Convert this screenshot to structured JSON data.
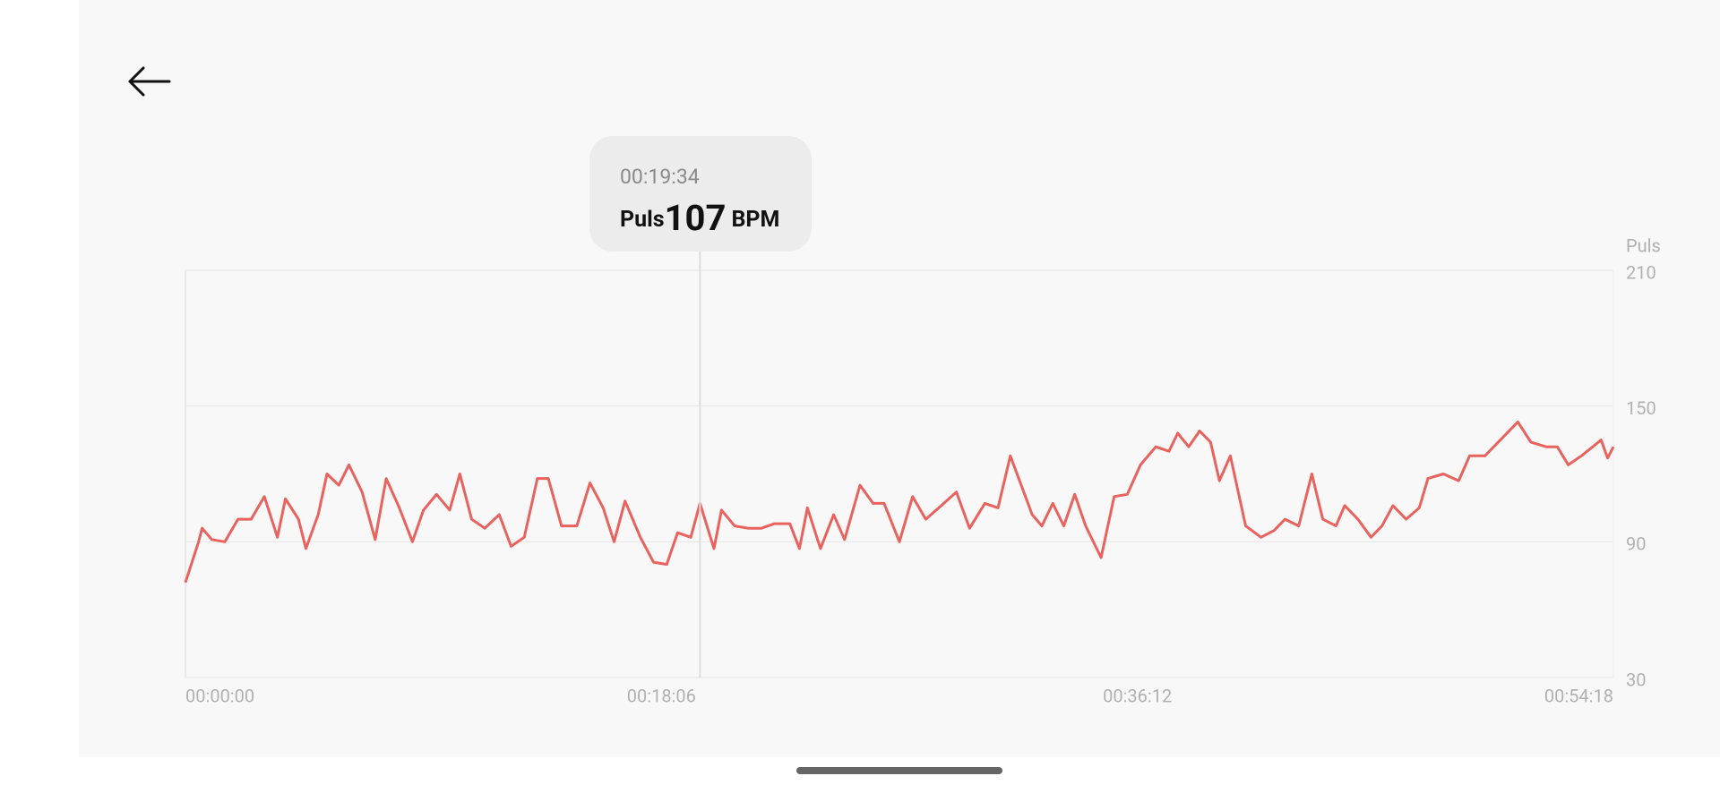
{
  "chart_data": {
    "type": "line",
    "y_axis_label": "Puls",
    "x": [
      0,
      30,
      38,
      60,
      90,
      120,
      150,
      180,
      210,
      228,
      258,
      275,
      303,
      323,
      350,
      373,
      403,
      433,
      458,
      488,
      518,
      543,
      573,
      603,
      626,
      653,
      683,
      716,
      743,
      773,
      803,
      828,
      858,
      893,
      923,
      953,
      978,
      1003,
      1038,
      1068,
      1098,
      1123,
      1153,
      1174,
      1206,
      1223,
      1253,
      1284,
      1314,
      1344,
      1379,
      1401,
      1419,
      1449,
      1479,
      1504,
      1539,
      1569,
      1594,
      1629,
      1659,
      1689,
      1719,
      1759,
      1789,
      1824,
      1854,
      1882,
      1907,
      1932,
      1954,
      1979,
      2004,
      2029,
      2054,
      2089,
      2119,
      2149,
      2179,
      2214,
      2244,
      2264,
      2289,
      2314,
      2339,
      2359,
      2384,
      2419,
      2454,
      2484,
      2509,
      2540,
      2570,
      2595,
      2625,
      2645,
      2675,
      2705,
      2730,
      2755,
      2785,
      2815,
      2835,
      2870,
      2905,
      2930,
      2965,
      3000,
      3040,
      3070,
      3105,
      3130,
      3155,
      3185,
      3230,
      3245,
      3258
    ],
    "series": [
      {
        "name": "Puls",
        "color": "#e8625e",
        "values": [
          72,
          90,
          96,
          91,
          90,
          100,
          100,
          110,
          92,
          109,
          100,
          87,
          102,
          120,
          115,
          124,
          112,
          91,
          118,
          105,
          90,
          104,
          111,
          104,
          120,
          100,
          96,
          102,
          88,
          92,
          118,
          118,
          97,
          97,
          116,
          105,
          90,
          108,
          92,
          81,
          80,
          94,
          92,
          107,
          87,
          104,
          97,
          96,
          96,
          98,
          98,
          87,
          105,
          87,
          102,
          91,
          115,
          107,
          107,
          90,
          110,
          100,
          105,
          112,
          96,
          107,
          105,
          128,
          115,
          102,
          97,
          107,
          97,
          111,
          97,
          83,
          110,
          111,
          124,
          132,
          130,
          138,
          132,
          139,
          134,
          117,
          128,
          97,
          92,
          95,
          100,
          97,
          120,
          100,
          97,
          106,
          100,
          92,
          97,
          106,
          100,
          105,
          118,
          120,
          117,
          128,
          128,
          135,
          143,
          134,
          132,
          132,
          124,
          128,
          135,
          127,
          132
        ]
      }
    ],
    "xlim": [
      0,
      3258
    ],
    "xticks": [
      {
        "value": 0,
        "label": "00:00:00"
      },
      {
        "value": 1086,
        "label": "00:18:06"
      },
      {
        "value": 2172,
        "label": "00:36:12"
      },
      {
        "value": 3258,
        "label": "00:54:18"
      }
    ],
    "ylim": [
      30,
      210
    ],
    "yticks": [
      30,
      90,
      150,
      210
    ],
    "grid": true,
    "tooltip": {
      "x": 1174,
      "time": "00:19:34",
      "label": "Puls",
      "value": 107,
      "unit": "BPM"
    }
  }
}
